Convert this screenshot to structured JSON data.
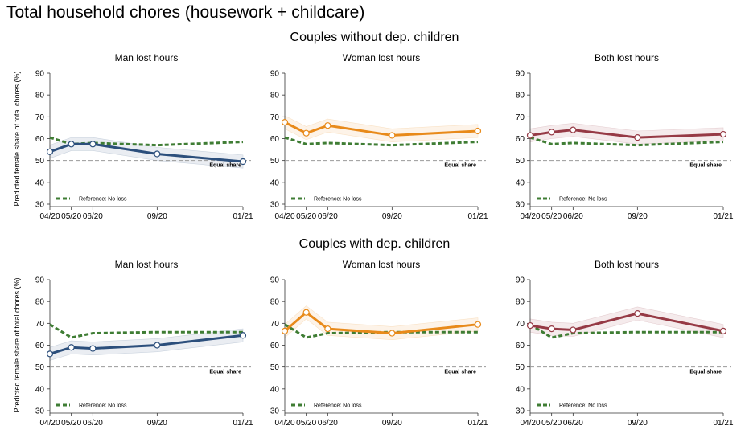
{
  "title": "Total household chores (housework + childcare)",
  "sections": [
    {
      "title": "Couples without dep. children"
    },
    {
      "title": "Couples with dep. children"
    }
  ],
  "ylabel": "Predicted female share of total chores (%)",
  "equal_share_label": "Equal share",
  "reference_label": "Reference: No loss",
  "colors": {
    "reference": "#3f7d34",
    "man": "#2c4f7c",
    "woman": "#e88a1a",
    "both": "#963a45",
    "equal": "#999999"
  },
  "chart_data": [
    {
      "type": "line",
      "section": "Couples without dep. children",
      "title": "Man lost hours",
      "color_key": "man",
      "x": [
        "04/20",
        "05/20",
        "06/20",
        "09/20",
        "01/21"
      ],
      "ylim": [
        30,
        90
      ],
      "yticks": [
        30,
        40,
        50,
        60,
        70,
        80,
        90
      ],
      "series": [
        {
          "values": [
            54,
            57.5,
            57.5,
            53,
            49.5
          ]
        },
        {
          "name": "Reference: No loss",
          "values": [
            60.5,
            57.5,
            58,
            57,
            58.5
          ]
        }
      ]
    },
    {
      "type": "line",
      "section": "Couples without dep. children",
      "title": "Woman lost hours",
      "color_key": "woman",
      "x": [
        "04/20",
        "05/20",
        "06/20",
        "09/20",
        "01/21"
      ],
      "ylim": [
        30,
        90
      ],
      "yticks": [
        30,
        40,
        50,
        60,
        70,
        80,
        90
      ],
      "series": [
        {
          "values": [
            67.5,
            62.5,
            66,
            61.5,
            63.5
          ]
        },
        {
          "name": "Reference: No loss",
          "values": [
            60.5,
            57.5,
            58,
            57,
            58.5
          ]
        }
      ]
    },
    {
      "type": "line",
      "section": "Couples without dep. children",
      "title": "Both lost hours",
      "color_key": "both",
      "x": [
        "04/20",
        "05/20",
        "06/20",
        "09/20",
        "01/21"
      ],
      "ylim": [
        30,
        90
      ],
      "yticks": [
        30,
        40,
        50,
        60,
        70,
        80,
        90
      ],
      "series": [
        {
          "values": [
            61.5,
            63,
            64,
            60.5,
            62
          ]
        },
        {
          "name": "Reference: No loss",
          "values": [
            60.5,
            57.5,
            58,
            57,
            58.5
          ]
        }
      ]
    },
    {
      "type": "line",
      "section": "Couples with dep. children",
      "title": "Man lost hours",
      "color_key": "man",
      "x": [
        "04/20",
        "05/20",
        "06/20",
        "09/20",
        "01/21"
      ],
      "ylim": [
        30,
        90
      ],
      "yticks": [
        30,
        40,
        50,
        60,
        70,
        80,
        90
      ],
      "series": [
        {
          "values": [
            56,
            59,
            58.5,
            60,
            64.5
          ]
        },
        {
          "name": "Reference: No loss",
          "values": [
            69.5,
            63.5,
            65.5,
            66,
            66
          ]
        }
      ]
    },
    {
      "type": "line",
      "section": "Couples with dep. children",
      "title": "Woman lost hours",
      "color_key": "woman",
      "x": [
        "04/20",
        "05/20",
        "06/20",
        "09/20",
        "01/21"
      ],
      "ylim": [
        30,
        90
      ],
      "yticks": [
        30,
        40,
        50,
        60,
        70,
        80,
        90
      ],
      "series": [
        {
          "values": [
            66.5,
            75,
            67.5,
            65.5,
            69.5
          ]
        },
        {
          "name": "Reference: No loss",
          "values": [
            69.5,
            63.5,
            65.5,
            66,
            66
          ]
        }
      ]
    },
    {
      "type": "line",
      "section": "Couples with dep. children",
      "title": "Both lost hours",
      "color_key": "both",
      "x": [
        "04/20",
        "05/20",
        "06/20",
        "09/20",
        "01/21"
      ],
      "ylim": [
        30,
        90
      ],
      "yticks": [
        30,
        40,
        50,
        60,
        70,
        80,
        90
      ],
      "series": [
        {
          "values": [
            69,
            67.5,
            67,
            74.5,
            66.5
          ]
        },
        {
          "name": "Reference: No loss",
          "values": [
            69.5,
            63.5,
            65.5,
            66,
            66
          ]
        }
      ]
    }
  ]
}
